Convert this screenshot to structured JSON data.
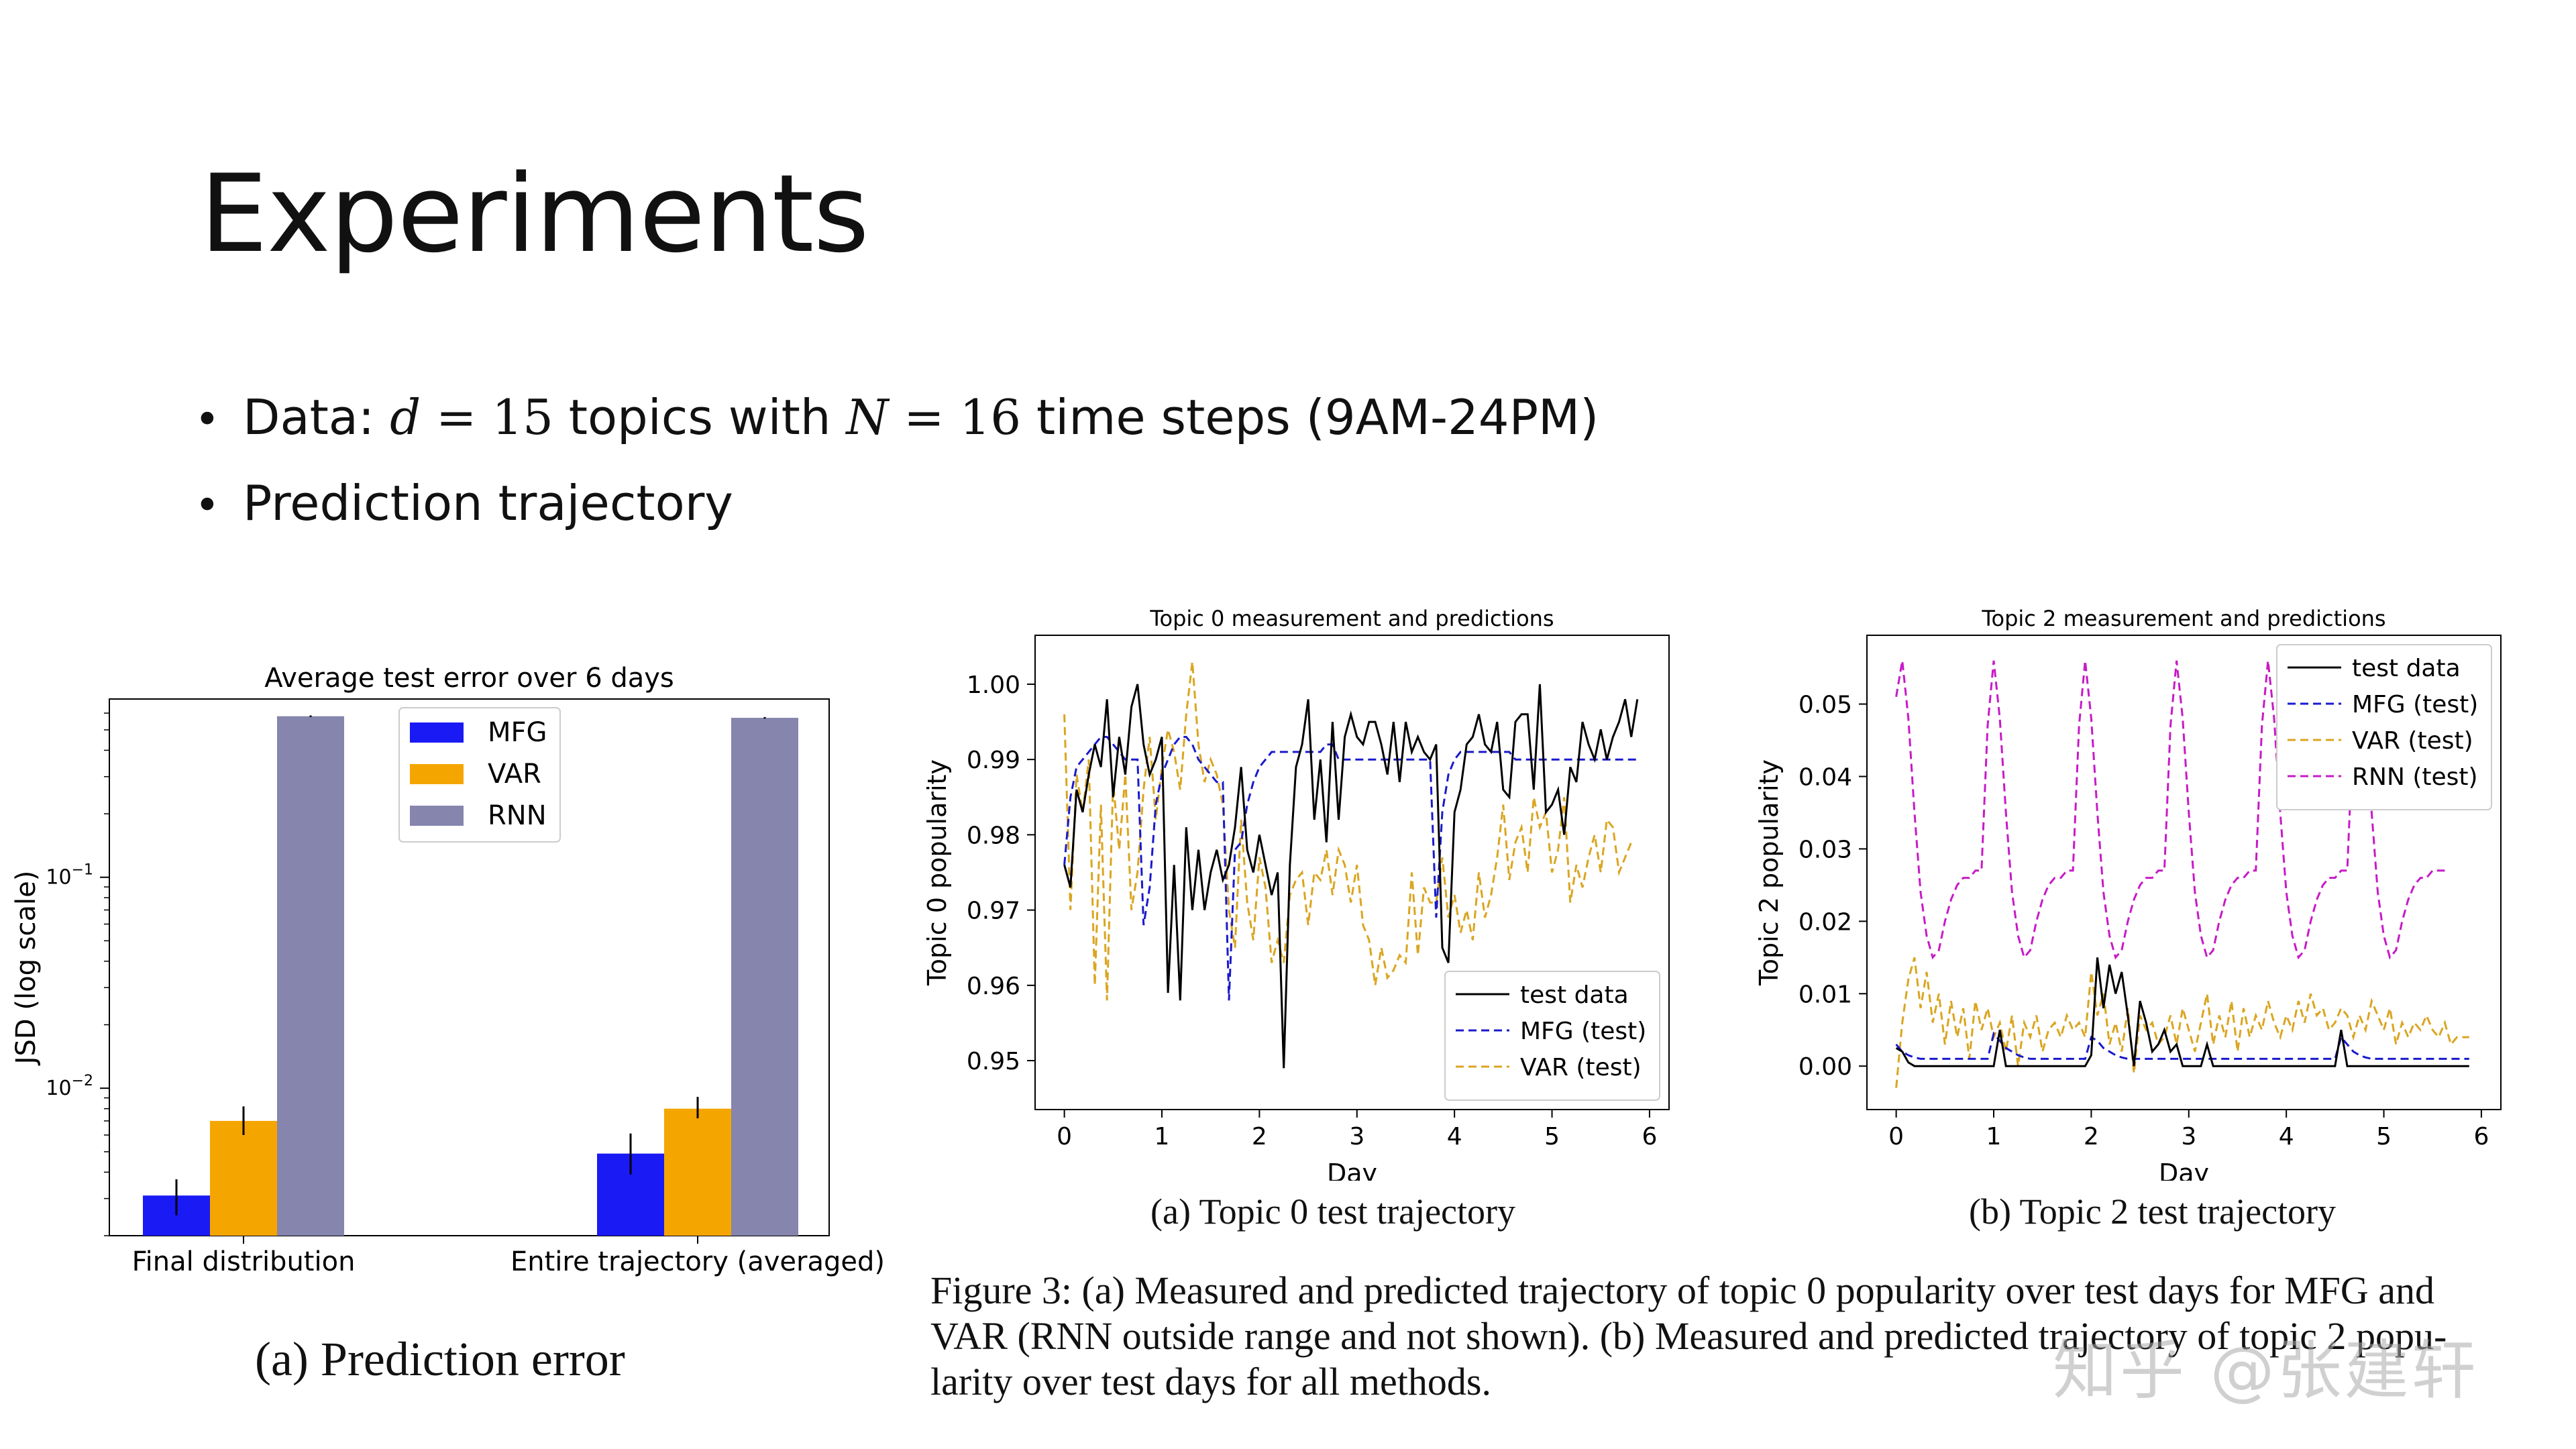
{
  "slide": {
    "title": "Experiments",
    "bullet1": {
      "prefix": "Data: ",
      "d": "d",
      "eq1": " = 15 ",
      "mid": "topics with ",
      "N": "N",
      "eq2": " = 16 ",
      "suffix": "time steps (9AM-24PM)"
    },
    "bullet2": "Prediction trajectory"
  },
  "captions": {
    "left": "(a) Prediction error",
    "middle": "(a) Topic 0 test trajectory",
    "right": "(b) Topic 2 test trajectory",
    "figure_lines": [
      "Figure 3:  (a) Measured and predicted trajectory of topic 0 popularity over test days for MFG and",
      "VAR (RNN outside range and not shown).  (b) Measured and predicted trajectory of topic 2 popu-",
      "larity over test days for all methods."
    ]
  },
  "watermark": "知乎 @张建轩",
  "colors": {
    "mfg": "#1a1af5",
    "var": "#f5a500",
    "rnn": "#8585ad",
    "black": "#000000",
    "magenta": "#c71ac7",
    "mfg_line": "#1a1acc",
    "var_line": "#daa520"
  },
  "chart_data": [
    {
      "type": "bar",
      "title": "Average test error over 6 days",
      "ylabel": "JSD (log scale)",
      "yscale": "log",
      "ylim": [
        0.002,
        0.7
      ],
      "yticks": [
        {
          "value": 0.1,
          "base": "10",
          "exp": "−1"
        },
        {
          "value": 0.01,
          "base": "10",
          "exp": "−2"
        }
      ],
      "categories": [
        "Final distribution",
        "Entire trajectory (averaged)"
      ],
      "series": [
        {
          "name": "MFG",
          "values": [
            0.0031,
            0.0049
          ],
          "err": [
            [
              0.0025,
              0.0037
            ],
            [
              0.0039,
              0.0061
            ]
          ]
        },
        {
          "name": "VAR",
          "values": [
            0.007,
            0.008
          ],
          "err": [
            [
              0.006,
              0.0082
            ],
            [
              0.0072,
              0.0091
            ]
          ]
        },
        {
          "name": "RNN",
          "values": [
            0.58,
            0.57
          ],
          "err": [
            [
              0.575,
              0.585
            ],
            [
              0.565,
              0.575
            ]
          ]
        }
      ],
      "legend": "top-center"
    },
    {
      "type": "line",
      "title": "Topic 0 measurement and predictions",
      "xlabel": "Day",
      "ylabel": "Topic 0 popularity",
      "xlim": [
        -0.3,
        6.2
      ],
      "ylim": [
        0.9435,
        1.0065
      ],
      "xticks": [
        "0",
        "1",
        "2",
        "3",
        "4",
        "5",
        "6"
      ],
      "yticks": [
        "0.95",
        "0.96",
        "0.97",
        "0.98",
        "0.99",
        "1.00"
      ],
      "legend": "lower-right",
      "series": [
        {
          "name": "test data",
          "style": "solid",
          "x_start": 0,
          "dx": 0.0625,
          "values": [
            0.976,
            0.973,
            0.986,
            0.983,
            0.988,
            0.992,
            0.989,
            0.998,
            0.985,
            0.993,
            0.988,
            0.997,
            1.0,
            0.992,
            0.988,
            0.99,
            0.993,
            0.959,
            0.976,
            0.958,
            0.981,
            0.97,
            0.978,
            0.97,
            0.975,
            0.978,
            0.974,
            0.976,
            0.981,
            0.989,
            0.978,
            0.975,
            0.98,
            0.976,
            0.972,
            0.975,
            0.949,
            0.976,
            0.989,
            0.992,
            0.998,
            0.982,
            0.99,
            0.979,
            0.995,
            0.982,
            0.993,
            0.996,
            0.993,
            0.992,
            0.995,
            0.995,
            0.992,
            0.988,
            0.995,
            0.987,
            0.995,
            0.991,
            0.993,
            0.991,
            0.99,
            0.992,
            0.965,
            0.963,
            0.983,
            0.986,
            0.992,
            0.993,
            0.996,
            0.992,
            0.991,
            0.995,
            0.986,
            0.985,
            0.995,
            0.996,
            0.996,
            0.986,
            1.0,
            0.983,
            0.984,
            0.986,
            0.98,
            0.989,
            0.987,
            0.995,
            0.992,
            0.99,
            0.994,
            0.99,
            0.993,
            0.995,
            0.998,
            0.993,
            0.998
          ]
        },
        {
          "name": "MFG (test)",
          "style": "dashed",
          "x_start": 0,
          "dx": 0.0625,
          "values": [
            0.976,
            0.985,
            0.989,
            0.99,
            0.991,
            0.992,
            0.993,
            0.993,
            0.992,
            0.991,
            0.99,
            0.99,
            0.99,
            0.968,
            0.973,
            0.984,
            0.988,
            0.99,
            0.992,
            0.993,
            0.993,
            0.992,
            0.99,
            0.989,
            0.988,
            0.987,
            0.987,
            0.958,
            0.978,
            0.979,
            0.984,
            0.987,
            0.989,
            0.99,
            0.991,
            0.991,
            0.991,
            0.991,
            0.991,
            0.991,
            0.991,
            0.991,
            0.991,
            0.992,
            0.992,
            0.99,
            0.99,
            0.99,
            0.99,
            0.99,
            0.99,
            0.99,
            0.99,
            0.99,
            0.99,
            0.99,
            0.99,
            0.99,
            0.99,
            0.99,
            0.99,
            0.969,
            0.983,
            0.988,
            0.99,
            0.991,
            0.991,
            0.991,
            0.991,
            0.991,
            0.991,
            0.991,
            0.991,
            0.991,
            0.99,
            0.99,
            0.99,
            0.99,
            0.99,
            0.99,
            0.99,
            0.99,
            0.99,
            0.99,
            0.99,
            0.99,
            0.99,
            0.99,
            0.99,
            0.99,
            0.99,
            0.99,
            0.99,
            0.99,
            0.99
          ]
        },
        {
          "name": "VAR (test)",
          "style": "dashed",
          "x_start": 0,
          "dx": 0.0625,
          "values": [
            0.996,
            0.97,
            0.988,
            0.983,
            0.99,
            0.96,
            0.984,
            0.958,
            0.987,
            0.978,
            0.988,
            0.97,
            0.975,
            0.986,
            0.993,
            0.982,
            0.989,
            0.994,
            0.991,
            0.986,
            0.996,
            1.003,
            0.992,
            0.987,
            0.99,
            0.988,
            0.984,
            0.97,
            0.965,
            0.982,
            0.971,
            0.966,
            0.977,
            0.973,
            0.963,
            0.966,
            0.963,
            0.972,
            0.974,
            0.975,
            0.968,
            0.975,
            0.974,
            0.978,
            0.972,
            0.978,
            0.976,
            0.971,
            0.976,
            0.968,
            0.966,
            0.96,
            0.965,
            0.961,
            0.962,
            0.964,
            0.963,
            0.975,
            0.964,
            0.973,
            0.971,
            0.971,
            0.977,
            0.969,
            0.972,
            0.967,
            0.97,
            0.966,
            0.975,
            0.969,
            0.972,
            0.977,
            0.984,
            0.974,
            0.979,
            0.981,
            0.975,
            0.985,
            0.981,
            0.983,
            0.975,
            0.978,
            0.985,
            0.971,
            0.976,
            0.973,
            0.977,
            0.98,
            0.975,
            0.982,
            0.981,
            0.975,
            0.977,
            0.979
          ]
        }
      ]
    },
    {
      "type": "line",
      "title": "Topic 2 measurement and predictions",
      "xlabel": "Day",
      "ylabel": "Topic 2 popularity",
      "xlim": [
        -0.3,
        6.2
      ],
      "ylim": [
        -0.006,
        0.0595
      ],
      "xticks": [
        "0",
        "1",
        "2",
        "3",
        "4",
        "5",
        "6"
      ],
      "yticks": [
        "0.00",
        "0.01",
        "0.02",
        "0.03",
        "0.04",
        "0.05"
      ],
      "legend": "top-right",
      "series": [
        {
          "name": "test data",
          "style": "solid",
          "x_start": 0,
          "dx": 0.0625,
          "values": [
            0.0025,
            0.002,
            0.0005,
            0.0,
            0.0,
            0.0,
            0.0,
            0.0,
            0.0,
            0.0,
            0.0,
            0.0,
            0.0,
            0.0,
            0.0,
            0.0,
            0.0,
            0.005,
            0.0,
            0.0,
            0.0,
            0.0,
            0.0,
            0.0,
            0.0,
            0.0,
            0.0,
            0.0,
            0.0,
            0.0,
            0.0,
            0.0,
            0.0015,
            0.015,
            0.008,
            0.014,
            0.01,
            0.013,
            0.007,
            0.0,
            0.009,
            0.006,
            0.002,
            0.003,
            0.005,
            0.002,
            0.003,
            0.0,
            0.0,
            0.0,
            0.0,
            0.003,
            0.0,
            0.0,
            0.0,
            0.0,
            0.0,
            0.0,
            0.0,
            0.0,
            0.0,
            0.0,
            0.0,
            0.0,
            0.0,
            0.0,
            0.0,
            0.0,
            0.0,
            0.0,
            0.0,
            0.0,
            0.0,
            0.005,
            0.0,
            0.0,
            0.0,
            0.0,
            0.0,
            0.0,
            0.0,
            0.0,
            0.0,
            0.0,
            0.0,
            0.0,
            0.0,
            0.0,
            0.0,
            0.0,
            0.0,
            0.0,
            0.0,
            0.0,
            0.0
          ]
        },
        {
          "name": "MFG (test)",
          "style": "dashed",
          "x_start": 0,
          "dx": 0.0625,
          "values": [
            0.003,
            0.002,
            0.0015,
            0.0012,
            0.001,
            0.001,
            0.001,
            0.001,
            0.001,
            0.001,
            0.001,
            0.001,
            0.001,
            0.001,
            0.001,
            0.001,
            0.0045,
            0.0035,
            0.0025,
            0.002,
            0.0015,
            0.0012,
            0.001,
            0.001,
            0.001,
            0.001,
            0.001,
            0.001,
            0.001,
            0.001,
            0.001,
            0.001,
            0.004,
            0.0035,
            0.0025,
            0.002,
            0.0015,
            0.0012,
            0.001,
            0.001,
            0.001,
            0.001,
            0.001,
            0.001,
            0.001,
            0.001,
            0.001,
            0.001,
            0.001,
            0.001,
            0.001,
            0.001,
            0.001,
            0.001,
            0.001,
            0.001,
            0.001,
            0.001,
            0.001,
            0.001,
            0.001,
            0.001,
            0.001,
            0.001,
            0.001,
            0.001,
            0.001,
            0.001,
            0.001,
            0.001,
            0.001,
            0.001,
            0.001,
            0.004,
            0.003,
            0.002,
            0.0015,
            0.0012,
            0.001,
            0.001,
            0.001,
            0.001,
            0.001,
            0.001,
            0.001,
            0.001,
            0.001,
            0.001,
            0.001,
            0.001,
            0.001,
            0.001,
            0.001,
            0.001,
            0.001
          ]
        },
        {
          "name": "VAR (test)",
          "style": "dashed",
          "x_start": 0,
          "dx": 0.0625,
          "values": [
            -0.003,
            0.006,
            0.012,
            0.015,
            0.008,
            0.013,
            0.006,
            0.01,
            0.003,
            0.009,
            0.004,
            0.008,
            0.001,
            0.009,
            0.005,
            0.008,
            0.004,
            0.006,
            0.002,
            0.007,
            0.0,
            0.006,
            0.004,
            0.007,
            0.002,
            0.005,
            0.006,
            0.004,
            0.007,
            0.005,
            0.006,
            0.004,
            0.013,
            0.007,
            0.01,
            0.003,
            0.006,
            0.002,
            0.008,
            -0.001,
            0.007,
            0.005,
            0.006,
            0.003,
            0.004,
            0.007,
            0.003,
            0.008,
            0.005,
            0.002,
            0.006,
            0.01,
            0.003,
            0.007,
            0.004,
            0.009,
            0.002,
            0.008,
            0.004,
            0.007,
            0.005,
            0.009,
            0.006,
            0.004,
            0.007,
            0.005,
            0.009,
            0.006,
            0.01,
            0.007,
            0.008,
            0.005,
            0.006,
            0.008,
            0.007,
            0.004,
            0.007,
            0.005,
            0.009,
            0.007,
            0.005,
            0.008,
            0.003,
            0.006,
            0.004,
            0.006,
            0.005,
            0.007,
            0.005,
            0.004,
            0.006,
            0.003,
            0.004,
            0.004,
            0.004
          ]
        },
        {
          "name": "RNN (test)",
          "style": "dashed",
          "x_start": 0,
          "dx": 0.0625,
          "values": [
            0.051,
            0.056,
            0.048,
            0.035,
            0.024,
            0.018,
            0.015,
            0.016,
            0.02,
            0.023,
            0.025,
            0.026,
            0.026,
            0.027,
            0.027,
            0.047,
            0.056,
            0.048,
            0.035,
            0.024,
            0.018,
            0.015,
            0.016,
            0.02,
            0.023,
            0.025,
            0.026,
            0.026,
            0.027,
            0.027,
            0.047,
            0.056,
            0.048,
            0.035,
            0.024,
            0.018,
            0.015,
            0.016,
            0.02,
            0.023,
            0.025,
            0.026,
            0.026,
            0.027,
            0.027,
            0.047,
            0.056,
            0.048,
            0.035,
            0.024,
            0.018,
            0.015,
            0.016,
            0.02,
            0.023,
            0.025,
            0.026,
            0.026,
            0.027,
            0.027,
            0.047,
            0.056,
            0.048,
            0.035,
            0.024,
            0.018,
            0.015,
            0.016,
            0.02,
            0.023,
            0.025,
            0.026,
            0.026,
            0.027,
            0.027,
            0.047,
            0.056,
            0.048,
            0.035,
            0.024,
            0.018,
            0.015,
            0.016,
            0.02,
            0.023,
            0.025,
            0.026,
            0.026,
            0.027,
            0.027,
            0.027
          ]
        }
      ]
    }
  ]
}
